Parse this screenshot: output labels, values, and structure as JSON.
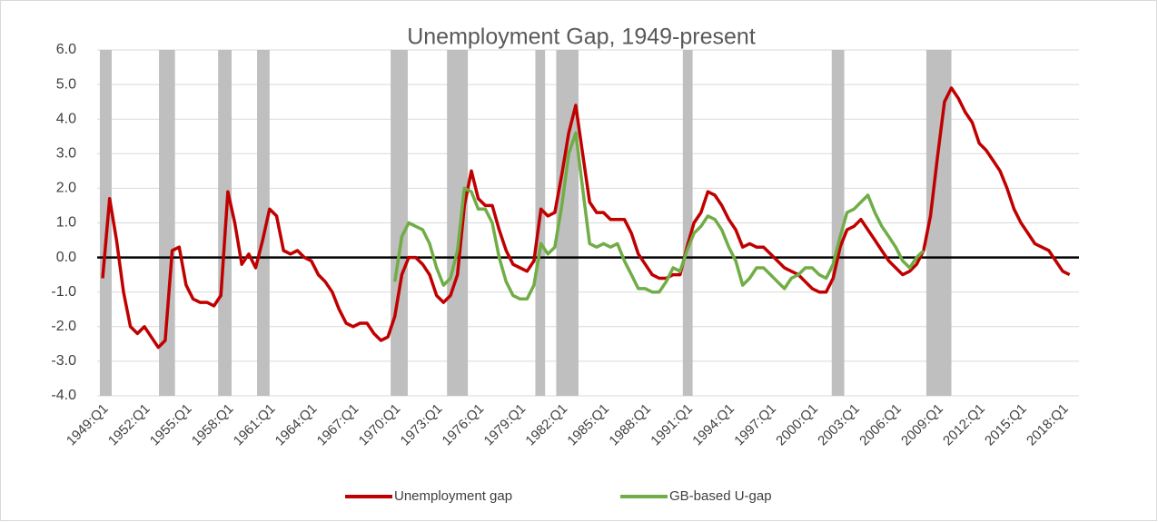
{
  "chart_data": {
    "type": "line",
    "title": "Unemployment Gap, 1949-present",
    "categories": [
      "1949:Q1",
      null,
      null,
      null,
      null,
      null,
      "1952:Q1",
      null,
      null,
      null,
      null,
      null,
      "1955:Q1",
      null,
      null,
      null,
      null,
      null,
      "1958:Q1",
      null,
      null,
      null,
      null,
      null,
      "1961:Q1",
      null,
      null,
      null,
      null,
      null,
      "1964:Q1",
      null,
      null,
      null,
      null,
      null,
      "1967:Q1",
      null,
      null,
      null,
      null,
      null,
      "1970:Q1",
      null,
      null,
      null,
      null,
      null,
      "1973:Q1",
      null,
      null,
      null,
      null,
      null,
      "1976:Q1",
      null,
      null,
      null,
      null,
      null,
      "1979:Q1",
      null,
      null,
      null,
      null,
      null,
      "1982:Q1",
      null,
      null,
      null,
      null,
      null,
      "1985:Q1",
      null,
      null,
      null,
      null,
      null,
      "1988:Q1",
      null,
      null,
      null,
      null,
      null,
      "1991:Q1",
      null,
      null,
      null,
      null,
      null,
      "1994:Q1",
      null,
      null,
      null,
      null,
      null,
      "1997:Q1",
      null,
      null,
      null,
      null,
      null,
      "2000:Q1",
      null,
      null,
      null,
      null,
      null,
      "2003:Q1",
      null,
      null,
      null,
      null,
      null,
      "2006:Q1",
      null,
      null,
      null,
      null,
      null,
      "2009:Q1",
      null,
      null,
      null,
      null,
      null,
      "2012:Q1",
      null,
      null,
      null,
      null,
      null,
      "2015:Q1",
      null,
      null,
      null,
      null,
      null,
      "2018:Q1",
      null
    ],
    "series": [
      {
        "name": "Unemployment gap",
        "color": "#c00000",
        "values": [
          -0.6,
          1.7,
          0.5,
          -1.0,
          -2.0,
          -2.2,
          -2.0,
          -2.3,
          -2.6,
          -2.4,
          0.2,
          0.3,
          -0.8,
          -1.2,
          -1.3,
          -1.3,
          -1.4,
          -1.1,
          1.9,
          1.0,
          -0.2,
          0.1,
          -0.3,
          0.5,
          1.4,
          1.2,
          0.2,
          0.1,
          0.2,
          0.0,
          -0.1,
          -0.5,
          -0.7,
          -1.0,
          -1.5,
          -1.9,
          -2.0,
          -1.9,
          -1.9,
          -2.2,
          -2.4,
          -2.3,
          -1.7,
          -0.5,
          0.0,
          0.0,
          -0.2,
          -0.5,
          -1.1,
          -1.3,
          -1.1,
          -0.5,
          1.5,
          2.5,
          1.7,
          1.5,
          1.5,
          0.8,
          0.2,
          -0.2,
          -0.3,
          -0.4,
          -0.1,
          1.4,
          1.2,
          1.3,
          2.4,
          3.6,
          4.4,
          3.0,
          1.6,
          1.3,
          1.3,
          1.1,
          1.1,
          1.1,
          0.7,
          0.1,
          -0.2,
          -0.5,
          -0.6,
          -0.6,
          -0.5,
          -0.5,
          0.3,
          1.0,
          1.3,
          1.9,
          1.8,
          1.5,
          1.1,
          0.8,
          0.3,
          0.4,
          0.3,
          0.3,
          0.1,
          -0.1,
          -0.3,
          -0.4,
          -0.5,
          -0.7,
          -0.9,
          -1.0,
          -1.0,
          -0.6,
          0.3,
          0.8,
          0.9,
          1.1,
          0.8,
          0.5,
          0.2,
          -0.1,
          -0.3,
          -0.5,
          -0.4,
          -0.2,
          0.2,
          1.2,
          2.9,
          4.5,
          4.9,
          4.6,
          4.2,
          3.9,
          3.3,
          3.1,
          2.8,
          2.5,
          2.0,
          1.4,
          1.0,
          0.7,
          0.4,
          0.3,
          0.2,
          -0.1,
          -0.4,
          -0.5
        ]
      },
      {
        "name": "GB-based U-gap",
        "color": "#70ad47",
        "values": [
          null,
          null,
          null,
          null,
          null,
          null,
          null,
          null,
          null,
          null,
          null,
          null,
          null,
          null,
          null,
          null,
          null,
          null,
          null,
          null,
          null,
          null,
          null,
          null,
          null,
          null,
          null,
          null,
          null,
          null,
          null,
          null,
          null,
          null,
          null,
          null,
          null,
          null,
          null,
          null,
          null,
          null,
          -0.7,
          0.6,
          1.0,
          0.9,
          0.8,
          0.4,
          -0.3,
          -0.8,
          -0.6,
          0.2,
          2.0,
          1.9,
          1.4,
          1.4,
          1.0,
          0.0,
          -0.7,
          -1.1,
          -1.2,
          -1.2,
          -0.8,
          0.4,
          0.1,
          0.3,
          1.5,
          3.0,
          3.6,
          2.0,
          0.4,
          0.3,
          0.4,
          0.3,
          0.4,
          -0.1,
          -0.5,
          -0.9,
          -0.9,
          -1.0,
          -1.0,
          -0.7,
          -0.3,
          -0.4,
          0.2,
          0.7,
          0.9,
          1.2,
          1.1,
          0.8,
          0.3,
          -0.1,
          -0.8,
          -0.6,
          -0.3,
          -0.3,
          -0.5,
          -0.7,
          -0.9,
          -0.6,
          -0.5,
          -0.3,
          -0.3,
          -0.5,
          -0.6,
          -0.2,
          0.6,
          1.3,
          1.4,
          1.6,
          1.8,
          1.3,
          0.9,
          0.6,
          0.3,
          -0.1,
          -0.3,
          0.0,
          0.2,
          null,
          null,
          null,
          null,
          null,
          null,
          null,
          null,
          null,
          null,
          null,
          null,
          null,
          null,
          null,
          null,
          null,
          null,
          null,
          null,
          null
        ]
      }
    ],
    "shaded_periods": [
      [
        1948.8,
        1949.65
      ],
      [
        1953.05,
        1954.2
      ],
      [
        1957.3,
        1958.27
      ],
      [
        1960.1,
        1961.0
      ],
      [
        1969.7,
        1970.93
      ],
      [
        1973.75,
        1975.25
      ],
      [
        1980.1,
        1980.8
      ],
      [
        1981.6,
        1983.2
      ],
      [
        1990.7,
        1991.4
      ],
      [
        2001.4,
        2002.3
      ],
      [
        2008.2,
        2010.0
      ]
    ],
    "shade_color": "#bfbfbf",
    "ylim": [
      -4,
      6
    ],
    "yticks": [
      {
        "value": -4,
        "label": "-4.0"
      },
      {
        "value": -3,
        "label": "-3.0"
      },
      {
        "value": -2,
        "label": "-2.0"
      },
      {
        "value": -1,
        "label": "-1.0"
      },
      {
        "value": 0,
        "label": "0.0"
      },
      {
        "value": 1,
        "label": "1.0"
      },
      {
        "value": 2,
        "label": "2.0"
      },
      {
        "value": 3,
        "label": "3.0"
      },
      {
        "value": 4,
        "label": "4.0"
      },
      {
        "value": 5,
        "label": "5.0"
      },
      {
        "value": 6,
        "label": "6.0"
      }
    ],
    "grid": true,
    "legend": "bottom"
  }
}
